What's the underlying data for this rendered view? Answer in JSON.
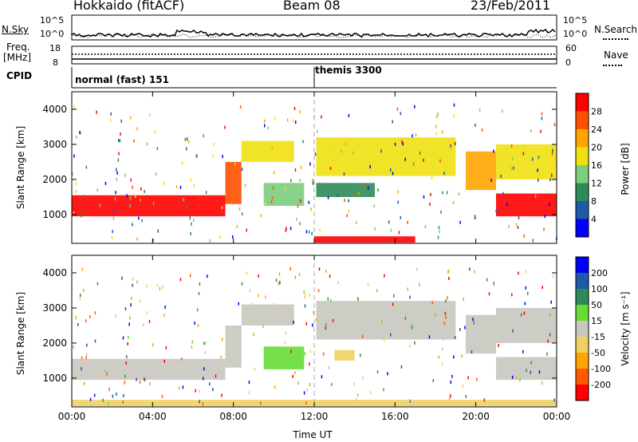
{
  "header": {
    "station": "Hokkaido (fitACF)",
    "beam": "Beam 08",
    "date": "23/Feb/2011"
  },
  "strips": {
    "nsky_label": "N.Sky",
    "nsky_ticks": [
      "10^5",
      "10^0"
    ],
    "nsearch_label": "N.Search",
    "nsearch_ticks": [
      "10^5",
      "10^0"
    ],
    "freq_label_1": "Freq.",
    "freq_label_2": "[MHz]",
    "freq_ticks": [
      "18",
      "8"
    ],
    "nave_label": "Nave",
    "nave_ticks": [
      "60",
      "0"
    ],
    "cpid_label": "CPID",
    "cpid_segments": [
      "normal (fast) 151",
      "themis 3300"
    ]
  },
  "chart_data": [
    {
      "type": "heatmap",
      "panel": "power",
      "ylabel": "Slant Range [km]",
      "ylim": [
        180,
        4500
      ],
      "yticks": [
        "4000",
        "3000",
        "2000",
        "1000"
      ],
      "xlim": [
        "00:00",
        "24:00"
      ],
      "colorbar_label": "Power [dB]",
      "colorbar_ticks": [
        "28",
        "24",
        "20",
        "16",
        "12",
        "8",
        "4"
      ],
      "colors": [
        "#0000ff",
        "#1e5aa8",
        "#2e8b57",
        "#7ccd7c",
        "#f0e010",
        "#ffa500",
        "#ff5000",
        "#ff0000"
      ],
      "bands": [
        {
          "t0": 0.0,
          "t1": 7.6,
          "r0": 950,
          "r1": 1550,
          "level": 7
        },
        {
          "t0": 7.6,
          "t1": 8.4,
          "r0": 1300,
          "r1": 2500,
          "level": 6
        },
        {
          "t0": 8.4,
          "t1": 11.0,
          "r0": 2500,
          "r1": 3100,
          "level": 4
        },
        {
          "t0": 9.5,
          "t1": 11.5,
          "r0": 1250,
          "r1": 1900,
          "level": 3
        },
        {
          "t0": 12.1,
          "t1": 19.0,
          "r0": 2100,
          "r1": 3200,
          "level": 4
        },
        {
          "t0": 12.1,
          "t1": 15.0,
          "r0": 1500,
          "r1": 1900,
          "level": 2
        },
        {
          "t0": 19.5,
          "t1": 21.0,
          "r0": 1700,
          "r1": 2800,
          "level": 5
        },
        {
          "t0": 21.0,
          "t1": 24.0,
          "r0": 950,
          "r1": 1600,
          "level": 7
        },
        {
          "t0": 21.0,
          "t1": 24.0,
          "r0": 2000,
          "r1": 3000,
          "level": 4
        },
        {
          "t0": 12.0,
          "t1": 17.0,
          "r0": 200,
          "r1": 380,
          "level": 7
        }
      ]
    },
    {
      "type": "heatmap",
      "panel": "velocity",
      "ylabel": "Slant Range [km]",
      "xlabel": "Time UT",
      "ylim": [
        180,
        4500
      ],
      "yticks": [
        "4000",
        "3000",
        "2000",
        "1000"
      ],
      "xlim": [
        "00:00",
        "24:00"
      ],
      "xticks": [
        "00:00",
        "04:00",
        "08:00",
        "12:00",
        "16:00",
        "20:00",
        "00:00"
      ],
      "colorbar_label": "Velocity [m s⁻¹]",
      "colorbar_ticks": [
        "200",
        "100",
        "50",
        "15",
        "-15",
        "-50",
        "-100",
        "-200"
      ],
      "colors": [
        "#ff0000",
        "#ff5a00",
        "#ffa500",
        "#f0d060",
        "#c8c8c0",
        "#66dd33",
        "#2e8b57",
        "#1e5aa8",
        "#0000ff"
      ],
      "bands": [
        {
          "t0": 0.0,
          "t1": 7.6,
          "r0": 950,
          "r1": 1550,
          "level": 4
        },
        {
          "t0": 7.6,
          "t1": 8.4,
          "r0": 1300,
          "r1": 2500,
          "level": 4
        },
        {
          "t0": 8.4,
          "t1": 11.0,
          "r0": 2500,
          "r1": 3100,
          "level": 4
        },
        {
          "t0": 9.5,
          "t1": 11.5,
          "r0": 1250,
          "r1": 1900,
          "level": 5
        },
        {
          "t0": 12.1,
          "t1": 19.0,
          "r0": 2100,
          "r1": 3200,
          "level": 4
        },
        {
          "t0": 13.0,
          "t1": 14.0,
          "r0": 1500,
          "r1": 1800,
          "level": 3
        },
        {
          "t0": 19.5,
          "t1": 21.0,
          "r0": 1700,
          "r1": 2800,
          "level": 4
        },
        {
          "t0": 21.0,
          "t1": 24.0,
          "r0": 950,
          "r1": 1600,
          "level": 4
        },
        {
          "t0": 21.0,
          "t1": 24.0,
          "r0": 2000,
          "r1": 3000,
          "level": 4
        },
        {
          "t0": 0.0,
          "t1": 24.0,
          "r0": 200,
          "r1": 380,
          "level": 3
        }
      ]
    }
  ]
}
